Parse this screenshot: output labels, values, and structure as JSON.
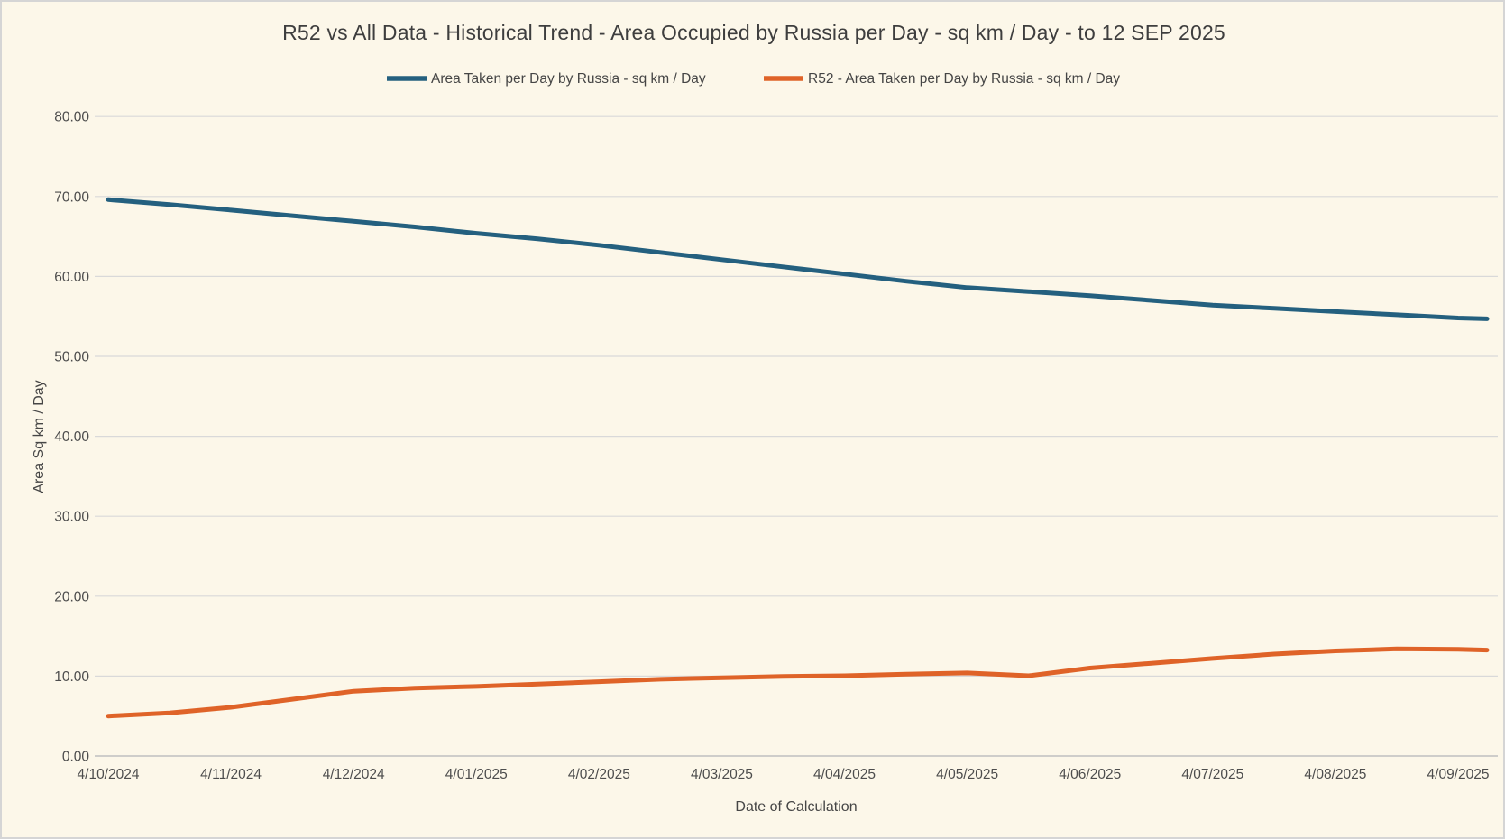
{
  "chart_data": {
    "type": "line",
    "title": "R52 vs All Data - Historical Trend - Area Occupied by Russia per Day - sq km / Day - to 12 SEP 2025",
    "xlabel": "Date of Calculation",
    "ylabel": "Area Sq km / Day",
    "ylim": [
      0,
      80
    ],
    "grid": "horizontal",
    "legend_position": "top",
    "background_color": "#FCF7E9",
    "gridline_color": "#D9D9D9",
    "y_ticks": [
      {
        "label": "80.00",
        "value": 80
      },
      {
        "label": "70.00",
        "value": 70
      },
      {
        "label": "60.00",
        "value": 60
      },
      {
        "label": "50.00",
        "value": 50
      },
      {
        "label": "40.00",
        "value": 40
      },
      {
        "label": "30.00",
        "value": 30
      },
      {
        "label": "20.00",
        "value": 20
      },
      {
        "label": "10.00",
        "value": 10
      },
      {
        "label": "0.00",
        "value": 0
      }
    ],
    "categories": [
      "4/10/2024",
      "4/11/2024",
      "4/12/2024",
      "4/01/2025",
      "4/02/2025",
      "4/03/2025",
      "4/04/2025",
      "4/05/2025",
      "4/06/2025",
      "4/07/2025",
      "4/08/2025",
      "4/09/2025"
    ],
    "x_sample_units": [
      0,
      0.5,
      1,
      1.5,
      2,
      2.5,
      3,
      3.5,
      4,
      4.5,
      5,
      5.5,
      6,
      6.5,
      7,
      7.5,
      8,
      8.5,
      9,
      9.5,
      10,
      10.5,
      11,
      11.235
    ],
    "series": [
      {
        "name": "Area Taken per Day by Russia - sq km / Day",
        "color": "#24607F",
        "values": [
          69.6,
          69.0,
          68.3,
          67.6,
          66.9,
          66.2,
          65.4,
          64.7,
          63.9,
          63.0,
          62.1,
          61.2,
          60.3,
          59.4,
          58.6,
          58.1,
          57.6,
          57.0,
          56.4,
          56.0,
          55.6,
          55.2,
          54.8,
          54.7
        ]
      },
      {
        "name": "R52 - Area Taken per Day by Russia - sq km / Day",
        "color": "#DF6328",
        "values": [
          5.0,
          5.4,
          6.1,
          7.1,
          8.1,
          8.5,
          8.7,
          9.0,
          9.3,
          9.6,
          9.8,
          9.95,
          10.05,
          10.25,
          10.4,
          10.05,
          11.0,
          11.6,
          12.2,
          12.75,
          13.15,
          13.4,
          13.35,
          13.25
        ]
      }
    ]
  }
}
